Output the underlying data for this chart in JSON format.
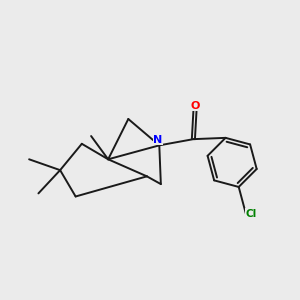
{
  "background_color": "#ebebeb",
  "bond_color": "#1a1a1a",
  "bond_width": 1.4,
  "atom_colors": {
    "N": "#0000ff",
    "O": "#ff0000",
    "Cl": "#008000",
    "C": "#1a1a1a"
  },
  "figsize": [
    3.0,
    3.0
  ],
  "dpi": 100
}
